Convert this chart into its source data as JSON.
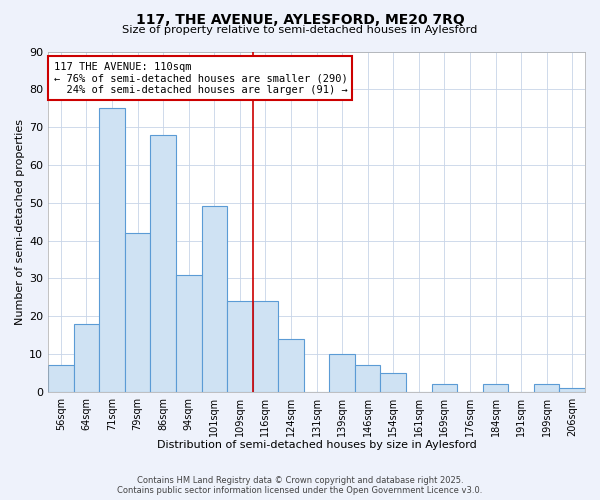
{
  "title": "117, THE AVENUE, AYLESFORD, ME20 7RQ",
  "subtitle": "Size of property relative to semi-detached houses in Aylesford",
  "xlabel": "Distribution of semi-detached houses by size in Aylesford",
  "ylabel": "Number of semi-detached properties",
  "categories": [
    "56sqm",
    "64sqm",
    "71sqm",
    "79sqm",
    "86sqm",
    "94sqm",
    "101sqm",
    "109sqm",
    "116sqm",
    "124sqm",
    "131sqm",
    "139sqm",
    "146sqm",
    "154sqm",
    "161sqm",
    "169sqm",
    "176sqm",
    "184sqm",
    "191sqm",
    "199sqm",
    "206sqm"
  ],
  "values": [
    7,
    18,
    75,
    42,
    68,
    31,
    49,
    24,
    24,
    14,
    0,
    10,
    7,
    5,
    0,
    2,
    0,
    2,
    0,
    2,
    1
  ],
  "bar_color": "#cfe2f3",
  "bar_edge_color": "#5b9bd5",
  "vline_x_pos": 7.5,
  "vline_color": "#cc0000",
  "annotation_title": "117 THE AVENUE: 110sqm",
  "annotation_line1": "← 76% of semi-detached houses are smaller (290)",
  "annotation_line2": "  24% of semi-detached houses are larger (91) →",
  "annotation_box_color": "#ffffff",
  "annotation_box_edge": "#cc0000",
  "ylim": [
    0,
    90
  ],
  "yticks": [
    0,
    10,
    20,
    30,
    40,
    50,
    60,
    70,
    80,
    90
  ],
  "footer_line1": "Contains HM Land Registry data © Crown copyright and database right 2025.",
  "footer_line2": "Contains public sector information licensed under the Open Government Licence v3.0.",
  "background_color": "#eef2fb",
  "plot_bg_color": "#ffffff",
  "grid_color": "#c8d4e8"
}
